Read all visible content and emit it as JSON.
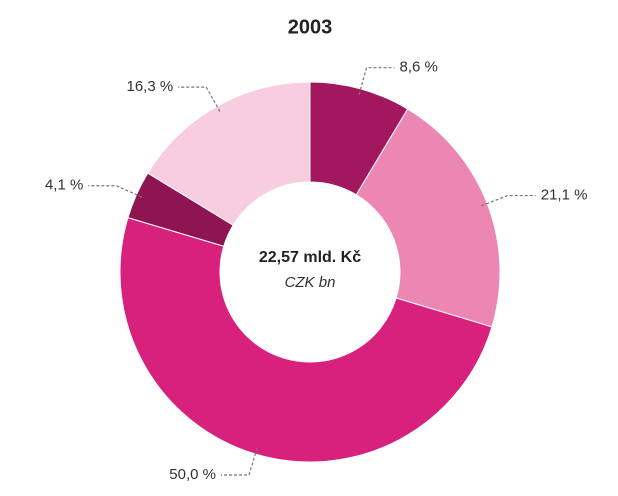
{
  "chart_data": {
    "type": "donut",
    "title": "2003",
    "values": [
      8.6,
      21.1,
      50.0,
      4.1,
      16.3
    ],
    "value_labels": [
      "8,6 %",
      "21,1 %",
      "50,0 %",
      "4,1 %",
      "16,3 %"
    ],
    "colors": [
      "#a3175f",
      "#ec86b2",
      "#d8207d",
      "#8f1452",
      "#f9cde0"
    ],
    "center_label": "22,57 mld. Kč",
    "center_sublabel": "CZK bn"
  }
}
